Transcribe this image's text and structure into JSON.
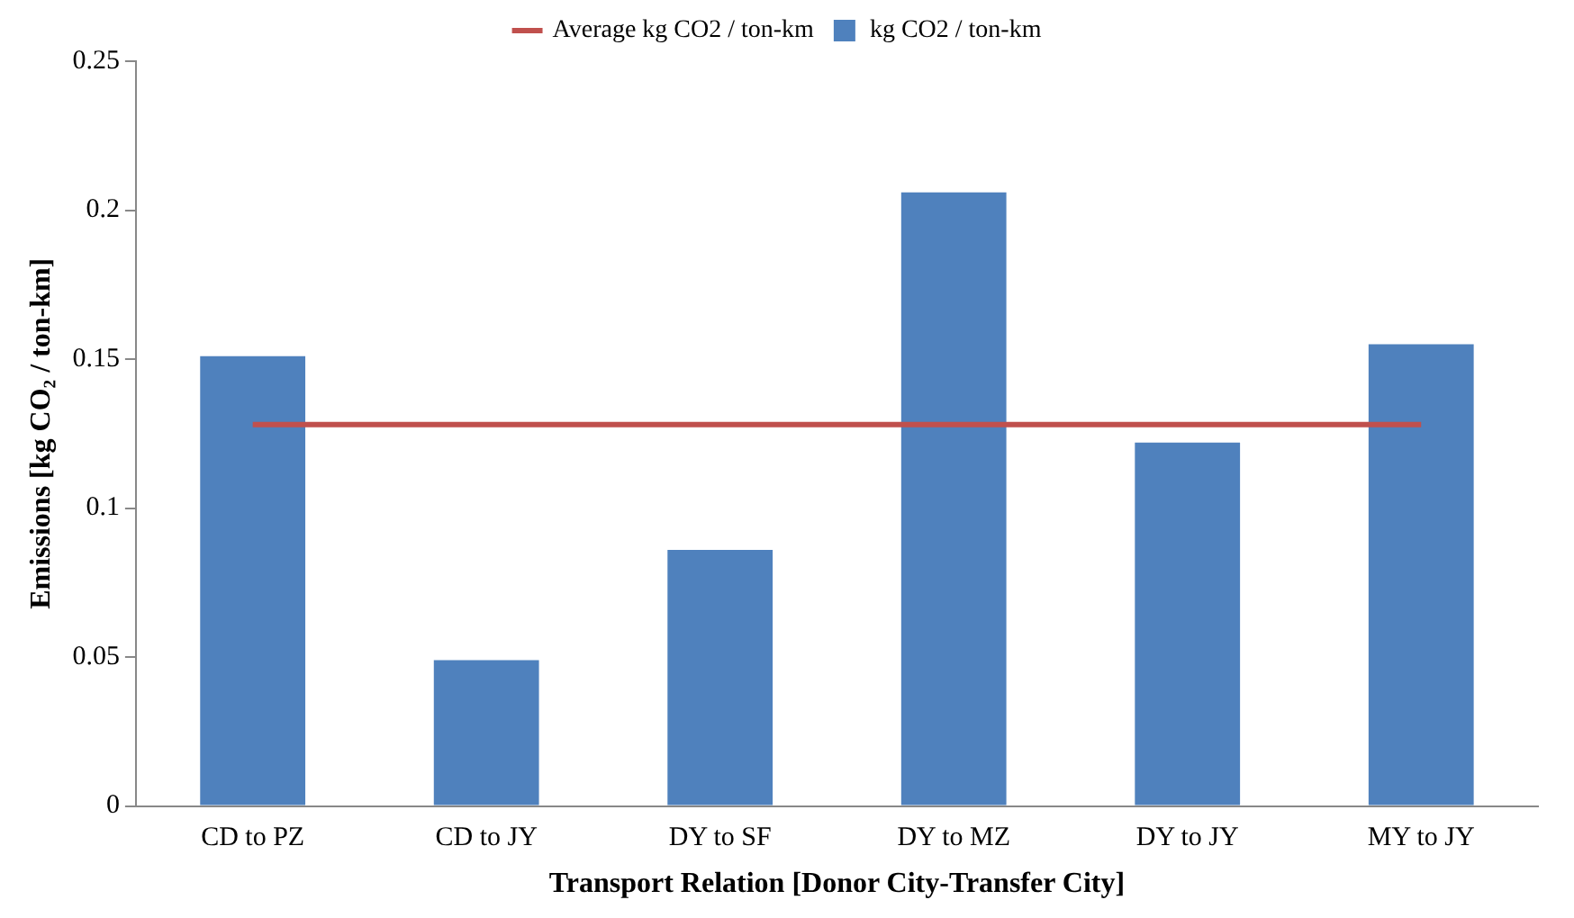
{
  "chart_data": {
    "type": "bar",
    "xlabel": "Transport Relation [Donor City-Transfer City]",
    "ylabel": "Emissions [kg CO₂ / ton-km]",
    "categories": [
      "CD to PZ",
      "CD to JY",
      "DY to SF",
      "DY to MZ",
      "DY to JY",
      "MY to JY"
    ],
    "series": [
      {
        "name": "kg CO2 / ton-km",
        "color": "#4f81bd",
        "values": [
          0.151,
          0.049,
          0.086,
          0.206,
          0.122,
          0.155
        ]
      },
      {
        "name": "Average kg CO2 / ton-km",
        "type": "line",
        "color": "#c0504d",
        "marker": "none",
        "values": [
          0.128,
          0.128,
          0.128,
          0.128,
          0.128,
          0.128
        ]
      }
    ],
    "ylim": [
      0,
      0.25
    ],
    "yticks": [
      0,
      0.05,
      0.1,
      0.15,
      0.2,
      0.25
    ],
    "grid": false,
    "legend": "top"
  }
}
